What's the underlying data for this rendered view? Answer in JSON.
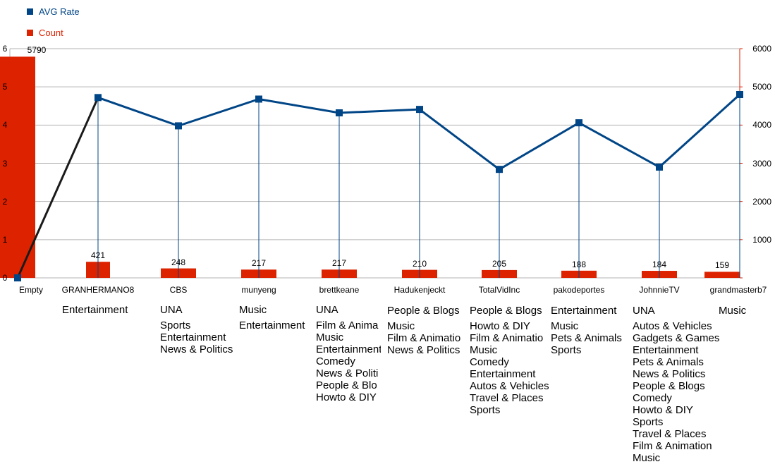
{
  "legend": {
    "avg_rate": {
      "label": "AVG Rate",
      "color": "#004586"
    },
    "count": {
      "label": "Count",
      "color": "#dd2200"
    }
  },
  "chart_data": {
    "type": "bar",
    "categories": [
      "Empty",
      "GRANHERMANO8",
      "CBS",
      "munyeng",
      "brettkeane",
      "Hadukenjeckt",
      "TotalVidInc",
      "pakodeportes",
      "JohnnieTV",
      "grandmasterb7"
    ],
    "series": [
      {
        "name": "Count",
        "type": "bar",
        "axis": "right",
        "values": [
          5790,
          421,
          248,
          217,
          217,
          210,
          205,
          188,
          184,
          159
        ],
        "data_labels": [
          "5790",
          "421",
          "248",
          "217",
          "217",
          "210",
          "205",
          "188",
          "184",
          "159"
        ]
      },
      {
        "name": "AVG Rate",
        "type": "line",
        "axis": "left",
        "values": [
          0,
          4.72,
          3.98,
          4.68,
          4.32,
          4.41,
          2.84,
          4.06,
          2.9,
          4.8
        ]
      }
    ],
    "left_axis": {
      "range": [
        0,
        6
      ],
      "ticks": [
        "0",
        "1",
        "2",
        "3",
        "4",
        "5",
        "6"
      ]
    },
    "right_axis": {
      "range": [
        0,
        6000
      ],
      "ticks": [
        "1000",
        "2000",
        "3000",
        "4000",
        "5000",
        "6000"
      ]
    },
    "grid": true,
    "legend_position": "top-left"
  },
  "category_lists": [
    [],
    [
      "Entertainment"
    ],
    [
      "UNA",
      "Sports",
      "Entertainment",
      "News & Politics"
    ],
    [
      "Music",
      "Entertainment"
    ],
    [
      "UNA",
      "Film & Anima",
      "Music",
      "Entertainment",
      "Comedy",
      "News & Politi",
      "People & Blo",
      "Howto & DIY"
    ],
    [
      "People & Blogs",
      "Music",
      "Film & Animatio",
      "News & Politics"
    ],
    [
      "People & Blogs",
      "Howto & DIY",
      "Film & Animatio",
      "Music",
      "Comedy",
      "Entertainment",
      "Autos & Vehicles",
      "Travel & Places",
      "Sports"
    ],
    [
      "Entertainment",
      "Music",
      "Pets & Animals",
      "Sports"
    ],
    [
      "UNA",
      "Autos & Vehicles",
      "Gadgets & Games",
      "Entertainment",
      "Pets & Animals",
      "News & Politics",
      "People & Blogs",
      "Comedy",
      "Howto & DIY",
      "Sports",
      "Travel & Places",
      "Film & Animation",
      "Music"
    ],
    [
      "Music"
    ]
  ]
}
